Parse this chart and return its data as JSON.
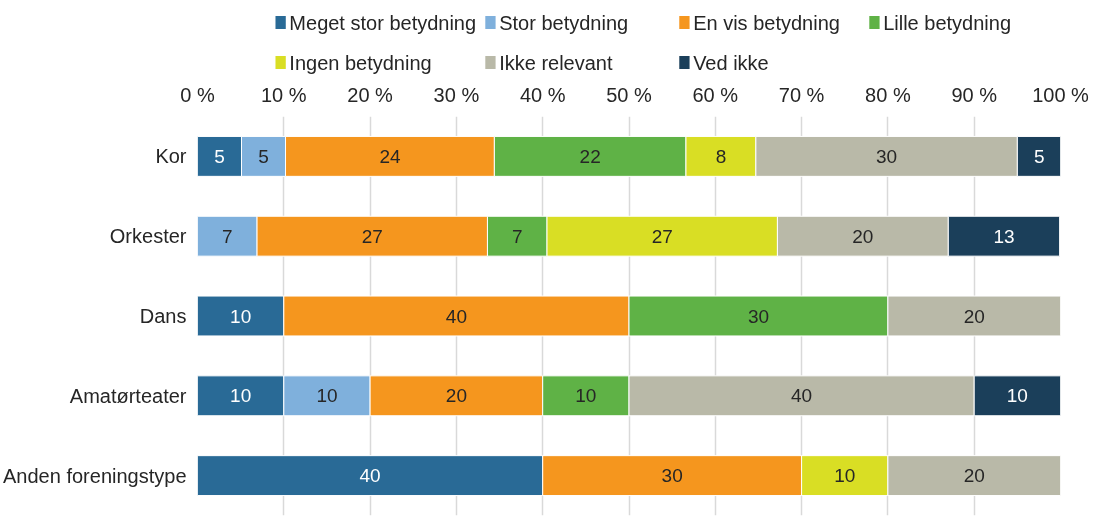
{
  "chart_data": {
    "type": "bar",
    "orientation": "horizontal",
    "stacked": true,
    "categories": [
      "Kor",
      "Orkester",
      "Dans",
      "Amatørteater",
      "Anden foreningstype"
    ],
    "series": [
      {
        "name": "Meget stor betydning",
        "color": "#296a96",
        "values": [
          5.1,
          null,
          10,
          10,
          40
        ],
        "value_labels": [
          "5",
          null,
          "10",
          "10",
          "40"
        ]
      },
      {
        "name": "Stor betydning",
        "color": "#7fb0dc",
        "values": [
          5.1,
          6.9,
          null,
          10,
          null
        ],
        "value_labels": [
          "5",
          "7",
          null,
          "10",
          null
        ]
      },
      {
        "name": "En vis betydning",
        "color": "#f5961e",
        "values": [
          24.2,
          26.7,
          40,
          20,
          30
        ],
        "value_labels": [
          "24",
          "27",
          "40",
          "20",
          "30"
        ]
      },
      {
        "name": "Lille betydning",
        "color": "#5fb246",
        "values": [
          22.2,
          6.9,
          30,
          10,
          null
        ],
        "value_labels": [
          "22",
          "7",
          "30",
          "10",
          null
        ]
      },
      {
        "name": "Ingen betydning",
        "color": "#d9de24",
        "values": [
          8.1,
          26.7,
          null,
          null,
          10
        ],
        "value_labels": [
          "8",
          "27",
          null,
          null,
          "10"
        ]
      },
      {
        "name": "Ikke relevant",
        "color": "#b9b9a8",
        "values": [
          30.3,
          19.8,
          20,
          40,
          20
        ],
        "value_labels": [
          "30",
          "20",
          "20",
          "40",
          "20"
        ]
      },
      {
        "name": "Ved ikke",
        "color": "#1b3f5a",
        "values": [
          5.1,
          12.9,
          null,
          10,
          null
        ],
        "value_labels": [
          "5",
          "13",
          null,
          "10",
          null
        ]
      }
    ],
    "xlim": [
      0,
      100
    ],
    "xticks": [
      {
        "value": 0,
        "label": "0 %"
      },
      {
        "value": 10,
        "label": "10 %"
      },
      {
        "value": 20,
        "label": "20 %"
      },
      {
        "value": 30,
        "label": "30 %"
      },
      {
        "value": 40,
        "label": "40 %"
      },
      {
        "value": 50,
        "label": "50 %"
      },
      {
        "value": 60,
        "label": "60 %"
      },
      {
        "value": 70,
        "label": "70 %"
      },
      {
        "value": 80,
        "label": "80 %"
      },
      {
        "value": 90,
        "label": "90 %"
      },
      {
        "value": 100,
        "label": "100 %"
      }
    ],
    "grid": "x",
    "legend": "top"
  }
}
